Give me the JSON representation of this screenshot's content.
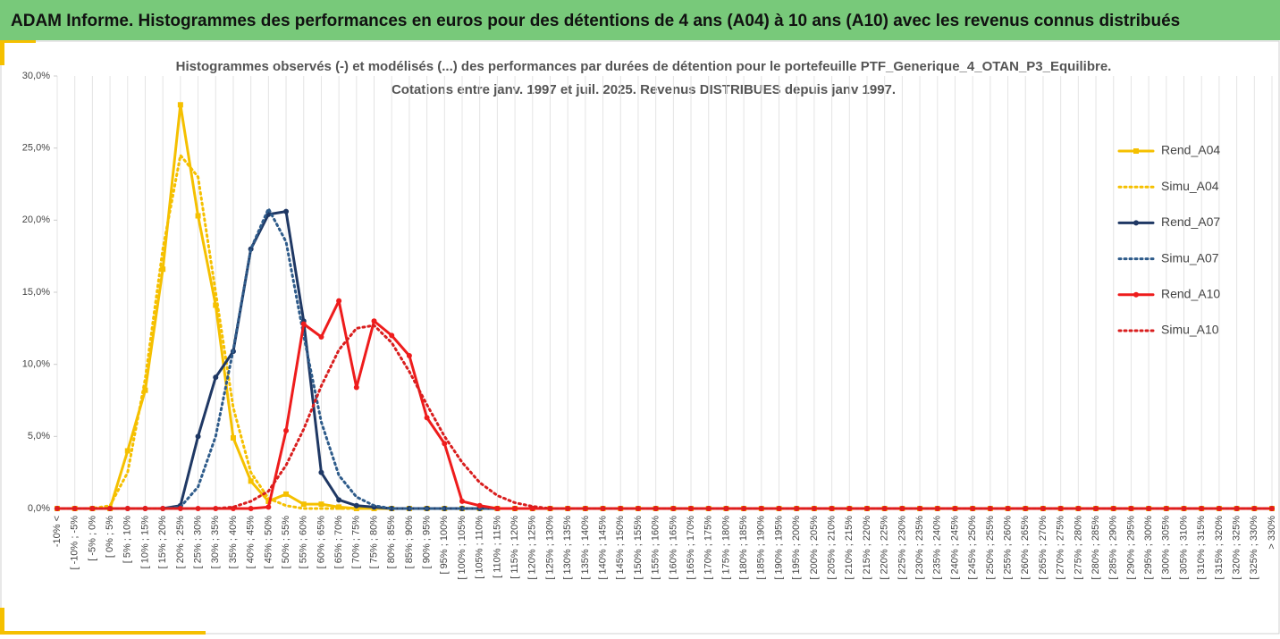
{
  "header": {
    "title": "ADAM Informe. Histogrammes des performances en euros pour des détentions de 4 ans (A04) à 10 ans (A10) avec les revenus connus distribués"
  },
  "chart_data": {
    "type": "line",
    "title": "Histogrammes observés (-) et modélisés (...) des performances par durées de détention pour le portefeuille PTF_Generique_4_OTAN_P3_Equilibre.",
    "subtitle": "Cotations entre janv. 1997 et juil. 2025. Revenus DISTRIBUES depuis janv 1997.",
    "categories": [
      "-10% <",
      "[ -10% ; -5%",
      "[ -5% ; 0%",
      "[ 0% ; 5%",
      "[ 5% ; 10%",
      "[ 10% ; 15%",
      "[ 15% ; 20%",
      "[ 20% ; 25%",
      "[ 25% ; 30%",
      "[ 30% ; 35%",
      "[ 35% ; 40%",
      "[ 40% ; 45%",
      "[ 45% ; 50%",
      "[ 50% ; 55%",
      "[ 55% ; 60%",
      "[ 60% ; 65%",
      "[ 65% ; 70%",
      "[ 70% ; 75%",
      "[ 75% ; 80%",
      "[ 80% ; 85%",
      "[ 85% ; 90%",
      "[ 90% ; 95%",
      "[ 95% ; 100%",
      "[ 100% ; 105%",
      "[ 105% ; 110%",
      "[ 110% ; 115%",
      "[ 115% ; 120%",
      "[ 120% ; 125%",
      "[ 125% ; 130%",
      "[ 130% ; 135%",
      "[ 135% ; 140%",
      "[ 140% ; 145%",
      "[ 145% ; 150%",
      "[ 150% ; 155%",
      "[ 155% ; 160%",
      "[ 160% ; 165%",
      "[ 165% ; 170%",
      "[ 170% ; 175%",
      "[ 175% ; 180%",
      "[ 180% ; 185%",
      "[ 185% ; 190%",
      "[ 190% ; 195%",
      "[ 195% ; 200%",
      "[ 200% ; 205%",
      "[ 205% ; 210%",
      "[ 210% ; 215%",
      "[ 215% ; 220%",
      "[ 220% ; 225%",
      "[ 225% ; 230%",
      "[ 230% ; 235%",
      "[ 235% ; 240%",
      "[ 240% ; 245%",
      "[ 245% ; 250%",
      "[ 250% ; 255%",
      "[ 255% ; 260%",
      "[ 260% ; 265%",
      "[ 265% ; 270%",
      "[ 270% ; 275%",
      "[ 275% ; 280%",
      "[ 280% ; 285%",
      "[ 285% ; 290%",
      "[ 290% ; 295%",
      "[ 295% ; 300%",
      "[ 300% ; 305%",
      "[ 305% ; 310%",
      "[ 310% ; 315%",
      "[ 315% ; 320%",
      "[ 320% ; 325%",
      "[ 325% ; 330%",
      "> 330%"
    ],
    "series": [
      {
        "name": "Rend_A04",
        "color": "#f5c000",
        "style": "solid",
        "marker": "square",
        "values": [
          0,
          0,
          0,
          0,
          4.0,
          8.2,
          16.6,
          28.0,
          20.3,
          14.1,
          4.9,
          1.9,
          0.5,
          1.0,
          0.3,
          0.3,
          0.1,
          0,
          0,
          0,
          0,
          0,
          0,
          0,
          0,
          0,
          0,
          0,
          0,
          0,
          0,
          0,
          0,
          0,
          0,
          0,
          0,
          0,
          0,
          0,
          0,
          0,
          0,
          0,
          0,
          0,
          0,
          0,
          0,
          0,
          0,
          0,
          0,
          0,
          0,
          0,
          0,
          0,
          0,
          0,
          0,
          0,
          0,
          0,
          0,
          0,
          0,
          0,
          0,
          0
        ]
      },
      {
        "name": "Simu_A04",
        "color": "#f5c000",
        "style": "dotted",
        "values": [
          0,
          0,
          0,
          0.2,
          2.5,
          9,
          18,
          24.5,
          23,
          15,
          7,
          2.5,
          0.7,
          0.2,
          0,
          0,
          0,
          0,
          0,
          0,
          0,
          0,
          0,
          0,
          0,
          0,
          0,
          0,
          0,
          0,
          0,
          0,
          0,
          0,
          0,
          0,
          0,
          0,
          0,
          0,
          0,
          0,
          0,
          0,
          0,
          0,
          0,
          0,
          0,
          0,
          0,
          0,
          0,
          0,
          0,
          0,
          0,
          0,
          0,
          0,
          0,
          0,
          0,
          0,
          0,
          0,
          0,
          0,
          0,
          0
        ]
      },
      {
        "name": "Rend_A07",
        "color": "#1f3864",
        "style": "solid",
        "marker": "circle",
        "values": [
          0,
          0,
          0,
          0,
          0,
          0,
          0,
          0.2,
          5.0,
          9.1,
          10.9,
          18.0,
          20.4,
          20.6,
          13.0,
          2.5,
          0.6,
          0.2,
          0.1,
          0,
          0,
          0,
          0,
          0,
          0,
          0,
          0,
          0,
          0,
          0,
          0,
          0,
          0,
          0,
          0,
          0,
          0,
          0,
          0,
          0,
          0,
          0,
          0,
          0,
          0,
          0,
          0,
          0,
          0,
          0,
          0,
          0,
          0,
          0,
          0,
          0,
          0,
          0,
          0,
          0,
          0,
          0,
          0,
          0,
          0,
          0,
          0,
          0,
          0,
          0
        ]
      },
      {
        "name": "Simu_A07",
        "color": "#2e5b8a",
        "style": "dotted",
        "values": [
          0,
          0,
          0,
          0,
          0,
          0,
          0,
          0.1,
          1.5,
          5,
          11,
          18,
          20.8,
          18.5,
          12,
          6,
          2.3,
          0.8,
          0.2,
          0,
          0,
          0,
          0,
          0,
          0,
          0,
          0,
          0,
          0,
          0,
          0,
          0,
          0,
          0,
          0,
          0,
          0,
          0,
          0,
          0,
          0,
          0,
          0,
          0,
          0,
          0,
          0,
          0,
          0,
          0,
          0,
          0,
          0,
          0,
          0,
          0,
          0,
          0,
          0,
          0,
          0,
          0,
          0,
          0,
          0,
          0,
          0,
          0,
          0,
          0
        ]
      },
      {
        "name": "Rend_A10",
        "color": "#ee1c1c",
        "style": "solid",
        "marker": "circle",
        "values": [
          0,
          0,
          0,
          0,
          0,
          0,
          0,
          0,
          0,
          0,
          0,
          0,
          0.1,
          5.4,
          12.8,
          11.9,
          14.4,
          8.4,
          13.0,
          12.0,
          10.6,
          6.3,
          4.5,
          0.5,
          0.2,
          0,
          0,
          0,
          0,
          0,
          0,
          0,
          0,
          0,
          0,
          0,
          0,
          0,
          0,
          0,
          0,
          0,
          0,
          0,
          0,
          0,
          0,
          0,
          0,
          0,
          0,
          0,
          0,
          0,
          0,
          0,
          0,
          0,
          0,
          0,
          0,
          0,
          0,
          0,
          0,
          0,
          0,
          0,
          0,
          0
        ]
      },
      {
        "name": "Simu_A10",
        "color": "#d91e1e",
        "style": "dotted",
        "values": [
          0,
          0,
          0,
          0,
          0,
          0,
          0,
          0,
          0,
          0,
          0.1,
          0.5,
          1.2,
          3,
          5.5,
          8.5,
          11,
          12.5,
          12.7,
          11.5,
          9.5,
          7.2,
          5,
          3.2,
          1.8,
          0.9,
          0.4,
          0.15,
          0,
          0,
          0,
          0,
          0,
          0,
          0,
          0,
          0,
          0,
          0,
          0,
          0,
          0,
          0,
          0,
          0,
          0,
          0,
          0,
          0,
          0,
          0,
          0,
          0,
          0,
          0,
          0,
          0,
          0,
          0,
          0,
          0,
          0,
          0,
          0,
          0,
          0,
          0,
          0,
          0,
          0
        ]
      }
    ],
    "ylim": [
      0,
      30
    ],
    "yticks": [
      {
        "value": 0,
        "label": "0,0%"
      },
      {
        "value": 5,
        "label": "5,0%"
      },
      {
        "value": 10,
        "label": "10,0%"
      },
      {
        "value": 15,
        "label": "15,0%"
      },
      {
        "value": 20,
        "label": "20,0%"
      },
      {
        "value": 25,
        "label": "25,0%"
      },
      {
        "value": 30,
        "label": "30,0%"
      }
    ],
    "grid": "x",
    "legend": "right"
  }
}
